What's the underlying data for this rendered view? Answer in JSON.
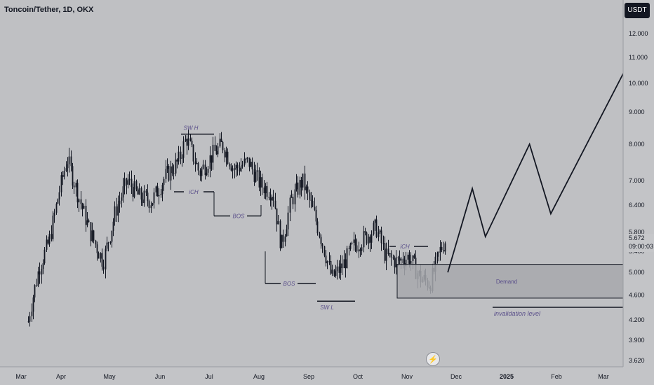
{
  "header": {
    "symbol": "Toncoin/Tether, 1D, OKX"
  },
  "price_axis": {
    "unit": "USDT",
    "ticks": [
      "12.000",
      "11.000",
      "10.000",
      "9.000",
      "8.000",
      "7.000",
      "6.400",
      "5.800",
      "5.400",
      "5.000",
      "4.600",
      "4.200",
      "3.900",
      "3.620"
    ]
  },
  "last_price": {
    "value": "5.672",
    "countdown": "09:00:03"
  },
  "time_axis": {
    "labels": [
      "Mar",
      "Apr",
      "May",
      "Jun",
      "Jul",
      "Aug",
      "Sep",
      "Oct",
      "Nov",
      "Dec",
      "2025",
      "Feb",
      "Mar"
    ]
  },
  "annotations": {
    "sw_h": "SW H",
    "sw_l": "SW L",
    "ich1": "iCH",
    "ich2": "iCH",
    "bos1": "BOS",
    "bos2": "BOS",
    "demand": "Demand",
    "invalidation": "invalidation level"
  },
  "flash_icon": "lightning-icon",
  "colors": {
    "background": "#bfc0c3",
    "candles": "#131722",
    "annotation_text": "#5a4f8a",
    "demand_zone": "#a7a8ad"
  },
  "chart_data": {
    "type": "candlestick",
    "title": "Toncoin/Tether, 1D, OKX",
    "y_unit": "USDT",
    "y_scale": "log",
    "ylim": [
      3.5,
      12.8
    ],
    "xlim": [
      "2024-02-26",
      "2025-03-20"
    ],
    "price_path": [
      {
        "date": "2024-03-01",
        "price": 3.5
      },
      {
        "date": "2024-03-06",
        "price": 4.3
      },
      {
        "date": "2024-03-12",
        "price": 5.1
      },
      {
        "date": "2024-03-18",
        "price": 5.6
      },
      {
        "date": "2024-03-24",
        "price": 6.7
      },
      {
        "date": "2024-03-29",
        "price": 7.6
      },
      {
        "date": "2024-04-05",
        "price": 6.6
      },
      {
        "date": "2024-04-12",
        "price": 5.8
      },
      {
        "date": "2024-04-20",
        "price": 5.2
      },
      {
        "date": "2024-04-28",
        "price": 6.3
      },
      {
        "date": "2024-05-05",
        "price": 7.0
      },
      {
        "date": "2024-05-12",
        "price": 6.6
      },
      {
        "date": "2024-05-20",
        "price": 6.5
      },
      {
        "date": "2024-05-28",
        "price": 7.1
      },
      {
        "date": "2024-06-05",
        "price": 7.5
      },
      {
        "date": "2024-06-10",
        "price": 8.2
      },
      {
        "date": "2024-06-18",
        "price": 7.2
      },
      {
        "date": "2024-06-26",
        "price": 7.7
      },
      {
        "date": "2024-07-02",
        "price": 8.0
      },
      {
        "date": "2024-07-09",
        "price": 7.3
      },
      {
        "date": "2024-07-18",
        "price": 7.5
      },
      {
        "date": "2024-07-25",
        "price": 6.9
      },
      {
        "date": "2024-08-02",
        "price": 6.7
      },
      {
        "date": "2024-08-07",
        "price": 5.5
      },
      {
        "date": "2024-08-13",
        "price": 6.5
      },
      {
        "date": "2024-08-20",
        "price": 7.0
      },
      {
        "date": "2024-08-27",
        "price": 6.2
      },
      {
        "date": "2024-09-01",
        "price": 5.6
      },
      {
        "date": "2024-09-07",
        "price": 4.9
      },
      {
        "date": "2024-09-13",
        "price": 5.1
      },
      {
        "date": "2024-09-20",
        "price": 5.5
      },
      {
        "date": "2024-09-28",
        "price": 5.7
      },
      {
        "date": "2024-10-04",
        "price": 5.9
      },
      {
        "date": "2024-10-10",
        "price": 5.3
      },
      {
        "date": "2024-10-17",
        "price": 5.2
      },
      {
        "date": "2024-10-24",
        "price": 5.3
      },
      {
        "date": "2024-10-31",
        "price": 4.9
      },
      {
        "date": "2024-11-06",
        "price": 4.8
      },
      {
        "date": "2024-11-12",
        "price": 5.4
      },
      {
        "date": "2024-11-16",
        "price": 5.67
      }
    ],
    "projection": [
      {
        "date": "2024-11-17",
        "price": 5.0
      },
      {
        "date": "2024-12-02",
        "price": 6.8
      },
      {
        "date": "2024-12-10",
        "price": 5.7
      },
      {
        "date": "2025-01-06",
        "price": 8.0
      },
      {
        "date": "2025-01-19",
        "price": 6.2
      },
      {
        "date": "2025-03-14",
        "price": 11.6
      }
    ],
    "levels": {
      "demand_zone": [
        4.55,
        5.15
      ],
      "invalidation_level": 4.4,
      "swing_high": 8.3,
      "swing_low": 4.5
    }
  }
}
